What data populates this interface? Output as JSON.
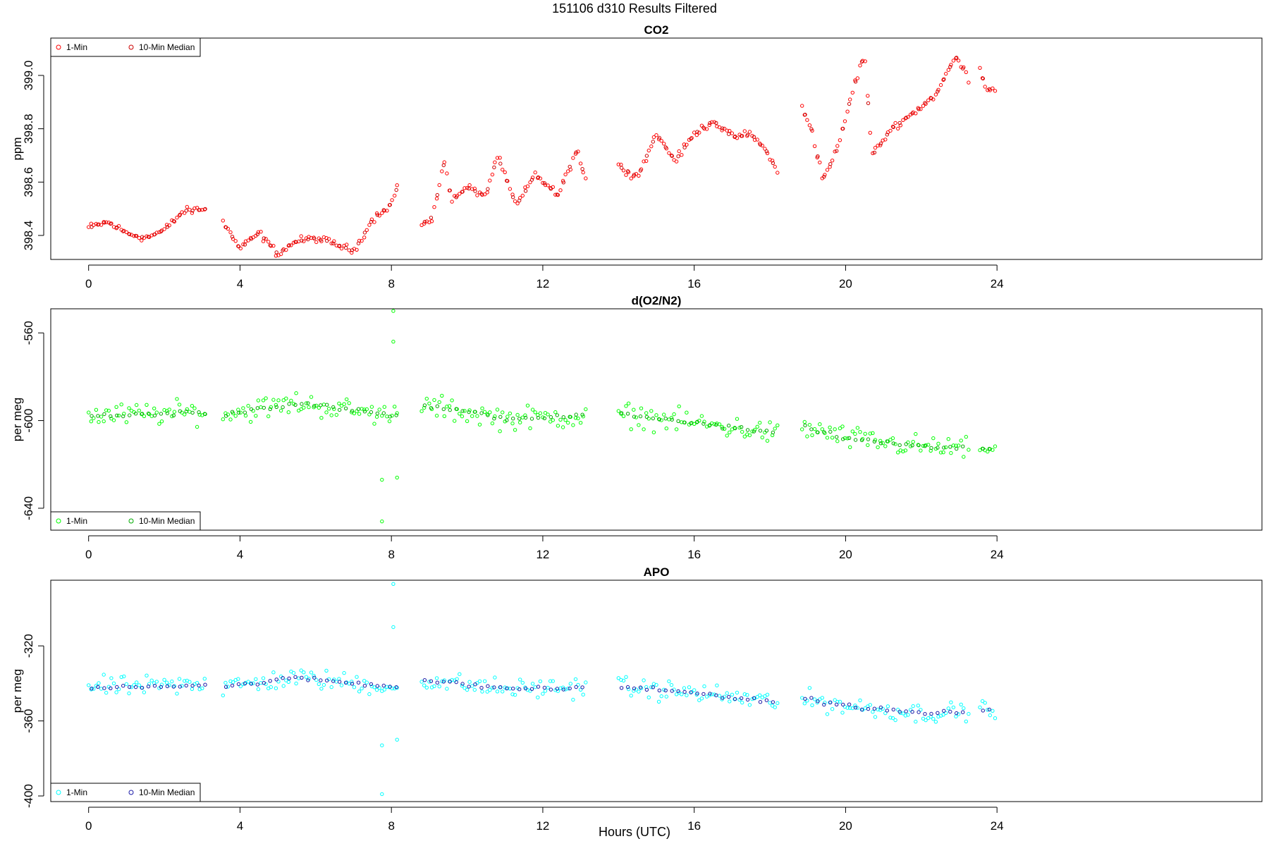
{
  "figure": {
    "title": "151106   d310   Results Filtered",
    "xlabel": "Hours (UTC)"
  },
  "chart_data": [
    {
      "type": "scatter",
      "title": "CO2",
      "ylabel": "ppm",
      "xlim": [
        -1,
        31
      ],
      "ylim": [
        398.31,
        399.14
      ],
      "xticks": [
        0,
        4,
        8,
        12,
        16,
        20,
        24
      ],
      "yticks": [
        398.4,
        398.6,
        398.8,
        399.0
      ],
      "ytick_labels": [
        "398.4",
        "398.6",
        "398.8",
        "399.0"
      ],
      "legend": {
        "position": "top-left",
        "entries": [
          "1-Min",
          "10-Min Median"
        ]
      },
      "colors": {
        "one_min": "#ff0000",
        "median": "#cc0000"
      },
      "segments": [
        [
          0,
          3.1
        ],
        [
          3.55,
          8.15
        ],
        [
          8.8,
          13.15
        ],
        [
          14.0,
          18.2
        ],
        [
          18.85,
          23.25
        ],
        [
          23.55,
          23.95
        ]
      ],
      "profile": [
        [
          0,
          398.43
        ],
        [
          0.5,
          398.45
        ],
        [
          1.0,
          398.41
        ],
        [
          1.5,
          398.39
        ],
        [
          2.0,
          398.42
        ],
        [
          2.5,
          398.49
        ],
        [
          3.1,
          398.5
        ],
        [
          3.55,
          398.45
        ],
        [
          4.0,
          398.35
        ],
        [
          4.5,
          398.41
        ],
        [
          5.0,
          398.33
        ],
        [
          5.5,
          398.38
        ],
        [
          6.0,
          398.39
        ],
        [
          6.5,
          398.37
        ],
        [
          7.0,
          398.34
        ],
        [
          7.5,
          398.46
        ],
        [
          8.0,
          398.52
        ],
        [
          8.15,
          398.58
        ],
        [
          8.8,
          398.44
        ],
        [
          9.1,
          398.47
        ],
        [
          9.4,
          398.68
        ],
        [
          9.6,
          398.53
        ],
        [
          10.0,
          398.58
        ],
        [
          10.5,
          398.55
        ],
        [
          10.8,
          398.7
        ],
        [
          11.3,
          398.51
        ],
        [
          11.8,
          398.63
        ],
        [
          12.4,
          398.55
        ],
        [
          12.9,
          398.72
        ],
        [
          13.15,
          398.6
        ],
        [
          14.0,
          398.66
        ],
        [
          14.5,
          398.62
        ],
        [
          15.0,
          398.78
        ],
        [
          15.5,
          398.68
        ],
        [
          16.0,
          398.78
        ],
        [
          16.5,
          398.83
        ],
        [
          17.0,
          398.77
        ],
        [
          17.5,
          398.78
        ],
        [
          18.0,
          398.7
        ],
        [
          18.2,
          398.63
        ],
        [
          18.85,
          398.88
        ],
        [
          19.1,
          398.8
        ],
        [
          19.4,
          398.61
        ],
        [
          19.8,
          398.73
        ],
        [
          20.2,
          398.95
        ],
        [
          20.5,
          399.08
        ],
        [
          20.7,
          398.7
        ],
        [
          21.2,
          398.8
        ],
        [
          21.8,
          398.86
        ],
        [
          22.4,
          398.93
        ],
        [
          22.9,
          399.07
        ],
        [
          23.25,
          398.99
        ],
        [
          23.55,
          399.03
        ],
        [
          23.7,
          398.95
        ],
        [
          23.95,
          398.95
        ]
      ],
      "noise": 0.012
    },
    {
      "type": "scatter",
      "title": "d(O2/N2)",
      "ylabel": "per meg",
      "xlim": [
        -1,
        31
      ],
      "ylim": [
        -650,
        -549
      ],
      "xticks": [
        0,
        4,
        8,
        12,
        16,
        20,
        24
      ],
      "yticks": [
        -560,
        -600,
        -640
      ],
      "ytick_labels": [
        "-560",
        "-600",
        "-640"
      ],
      "legend": {
        "position": "bottom-left",
        "entries": [
          "1-Min",
          "10-Min Median"
        ]
      },
      "colors": {
        "one_min": "#00ff00",
        "median": "#00aa00"
      },
      "segments": [
        [
          0,
          3.1
        ],
        [
          3.55,
          8.15
        ],
        [
          8.8,
          13.15
        ],
        [
          14.0,
          18.2
        ],
        [
          18.85,
          23.25
        ],
        [
          23.55,
          23.95
        ]
      ],
      "profile": [
        [
          0,
          -598
        ],
        [
          3.1,
          -596
        ],
        [
          3.55,
          -597
        ],
        [
          5.5,
          -592
        ],
        [
          8.15,
          -598
        ],
        [
          8.8,
          -593
        ],
        [
          11.0,
          -599
        ],
        [
          13.15,
          -598
        ],
        [
          14.0,
          -597
        ],
        [
          16.0,
          -601
        ],
        [
          18.2,
          -606
        ],
        [
          18.85,
          -603
        ],
        [
          20.0,
          -608
        ],
        [
          22.0,
          -612
        ],
        [
          23.25,
          -613
        ],
        [
          23.95,
          -612
        ]
      ],
      "noise": 4.5,
      "outliers": [
        [
          7.75,
          -646
        ],
        [
          7.75,
          -627
        ],
        [
          8.05,
          -550
        ],
        [
          8.05,
          -564
        ],
        [
          8.15,
          -626
        ]
      ]
    },
    {
      "type": "scatter",
      "title": "APO",
      "ylabel": "per meg",
      "xlim": [
        -1,
        31
      ],
      "ylim": [
        -403,
        -285
      ],
      "xticks": [
        0,
        4,
        8,
        12,
        16,
        20,
        24
      ],
      "yticks": [
        -320,
        -360,
        -400
      ],
      "ytick_labels": [
        "-320",
        "-360",
        "-400"
      ],
      "legend": {
        "position": "bottom-left",
        "entries": [
          "1-Min",
          "10-Min Median"
        ]
      },
      "colors": {
        "one_min": "#00ffff",
        "median": "#1a1aa8"
      },
      "segments": [
        [
          0,
          3.1
        ],
        [
          3.55,
          8.15
        ],
        [
          8.8,
          13.15
        ],
        [
          14.0,
          18.2
        ],
        [
          18.85,
          23.25
        ],
        [
          23.55,
          23.95
        ]
      ],
      "profile": [
        [
          0,
          -342
        ],
        [
          3.1,
          -341
        ],
        [
          3.55,
          -342
        ],
        [
          5.5,
          -337
        ],
        [
          8.15,
          -342
        ],
        [
          8.8,
          -338
        ],
        [
          11.0,
          -343
        ],
        [
          13.15,
          -342
        ],
        [
          14.0,
          -342
        ],
        [
          16.0,
          -345
        ],
        [
          18.2,
          -350
        ],
        [
          18.85,
          -348
        ],
        [
          20.0,
          -352
        ],
        [
          22.0,
          -356
        ],
        [
          23.25,
          -355
        ],
        [
          23.95,
          -354
        ]
      ],
      "noise": 4.5,
      "outliers": [
        [
          7.75,
          -399
        ],
        [
          7.75,
          -373
        ],
        [
          8.05,
          -287
        ],
        [
          8.05,
          -310
        ],
        [
          8.15,
          -370
        ]
      ]
    }
  ]
}
